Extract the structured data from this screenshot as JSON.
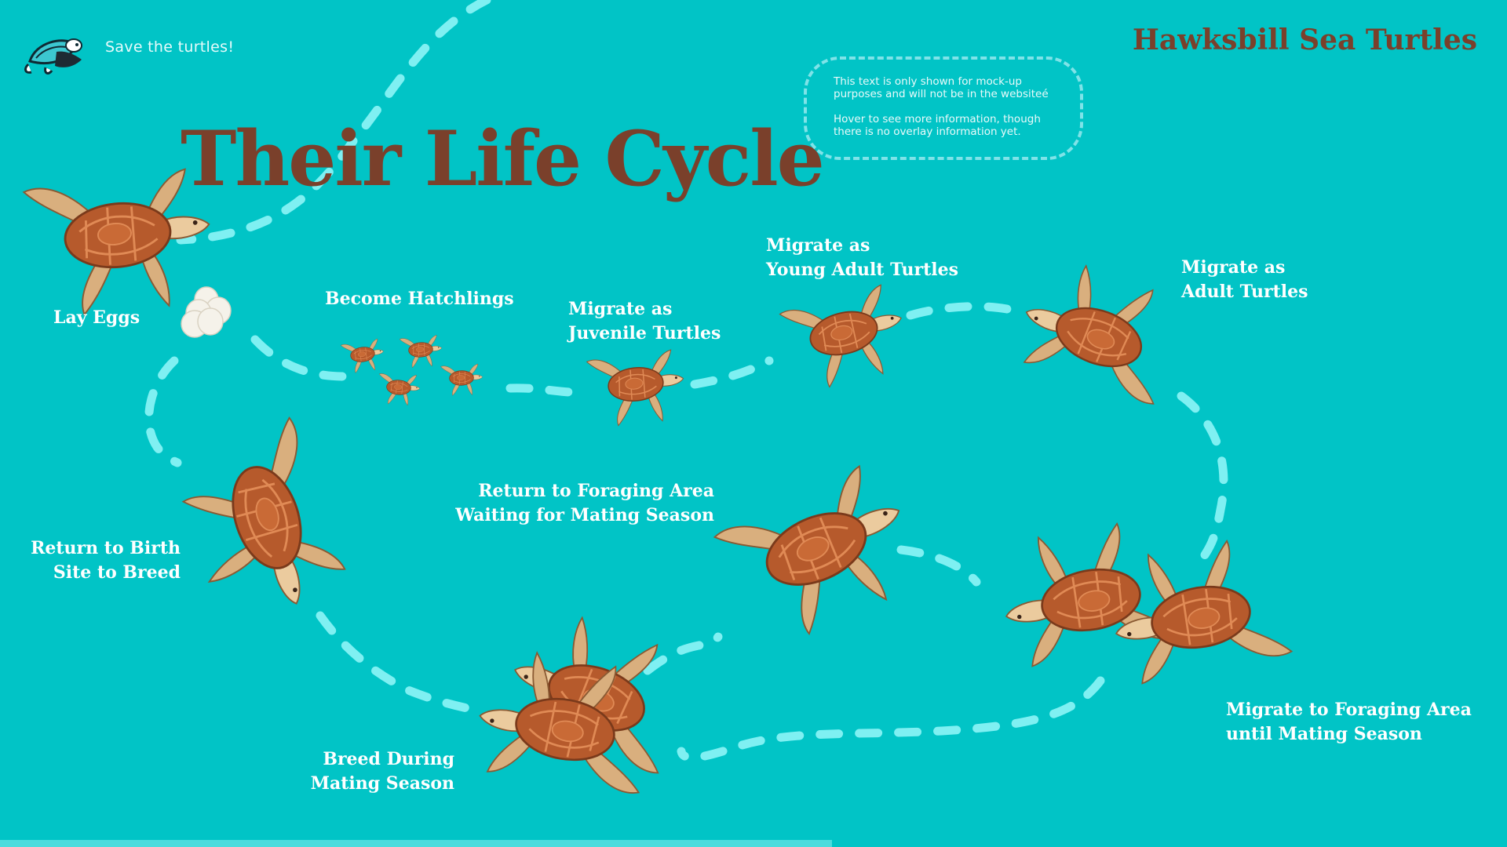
{
  "header": {
    "tagline": "Save the turtles!",
    "site_title": "Hawksbill Sea Turtles",
    "logo_icon": "turtle-logo-icon"
  },
  "page_title": "Their Life Cycle",
  "mockup_note": {
    "line1": "This text is only shown for mock-up purposes and will not be in the websiteé",
    "line2": "Hover to see more information, though there is no overlay information yet."
  },
  "stages": [
    {
      "key": "lay-eggs",
      "lines": [
        "Lay Eggs"
      ]
    },
    {
      "key": "become-hatchlings",
      "lines": [
        "Become Hatchlings"
      ]
    },
    {
      "key": "juvenile",
      "lines": [
        "Migrate as",
        "Juvenile Turtles"
      ]
    },
    {
      "key": "young-adult",
      "lines": [
        "Migrate as",
        "Young Adult Turtles"
      ]
    },
    {
      "key": "adult",
      "lines": [
        "Migrate as",
        "Adult Turtles"
      ]
    },
    {
      "key": "foraging-area",
      "lines": [
        "Migrate to Foraging Area",
        "until Mating Season"
      ]
    },
    {
      "key": "breed",
      "lines": [
        "Breed During",
        "Mating Season"
      ]
    },
    {
      "key": "return-birth-site",
      "lines": [
        "Return to Birth",
        "Site to Breed"
      ]
    },
    {
      "key": "return-foraging",
      "lines": [
        "Return to Foraging Area",
        "Waiting for Mating Season"
      ]
    }
  ],
  "colors": {
    "background": "#01C4C6",
    "title_brown": "#7A402B",
    "path_dash": "#7FF0F2",
    "shell": "#B65A2C",
    "skin": "#EBCB9E",
    "egg": "#F5F2EA"
  }
}
